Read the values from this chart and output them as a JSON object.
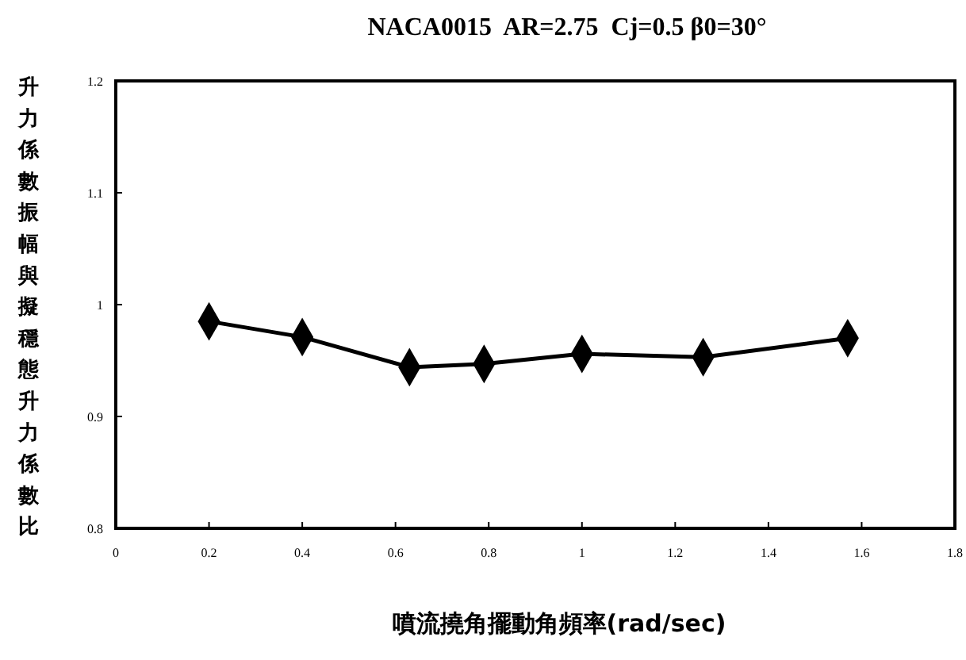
{
  "chart_data": {
    "type": "line",
    "title": "NACA0015  AR=2.75  Cj=0.5 β0=30°",
    "xlabel": "噴流撓角擺動角頻率(rad/sec)",
    "ylabel": "升力係數振幅與擬穩態升力係數比",
    "x": [
      0.2,
      0.4,
      0.63,
      0.79,
      1,
      1.26,
      1.57
    ],
    "series": [
      {
        "color": "#000000",
        "values": [
          0.985,
          0.971,
          0.944,
          0.947,
          0.956,
          0.953,
          0.97
        ]
      }
    ],
    "xlim": [
      0,
      1.8
    ],
    "xticks": [
      0,
      0.2,
      0.4,
      0.6,
      0.8,
      1,
      1.2,
      1.4,
      1.6,
      1.8
    ],
    "ylim": [
      0.8,
      1.2
    ],
    "yticks": [
      0.8,
      0.9,
      1,
      1.1,
      1.2
    ],
    "marker": "diamond",
    "line_style": "solid"
  }
}
